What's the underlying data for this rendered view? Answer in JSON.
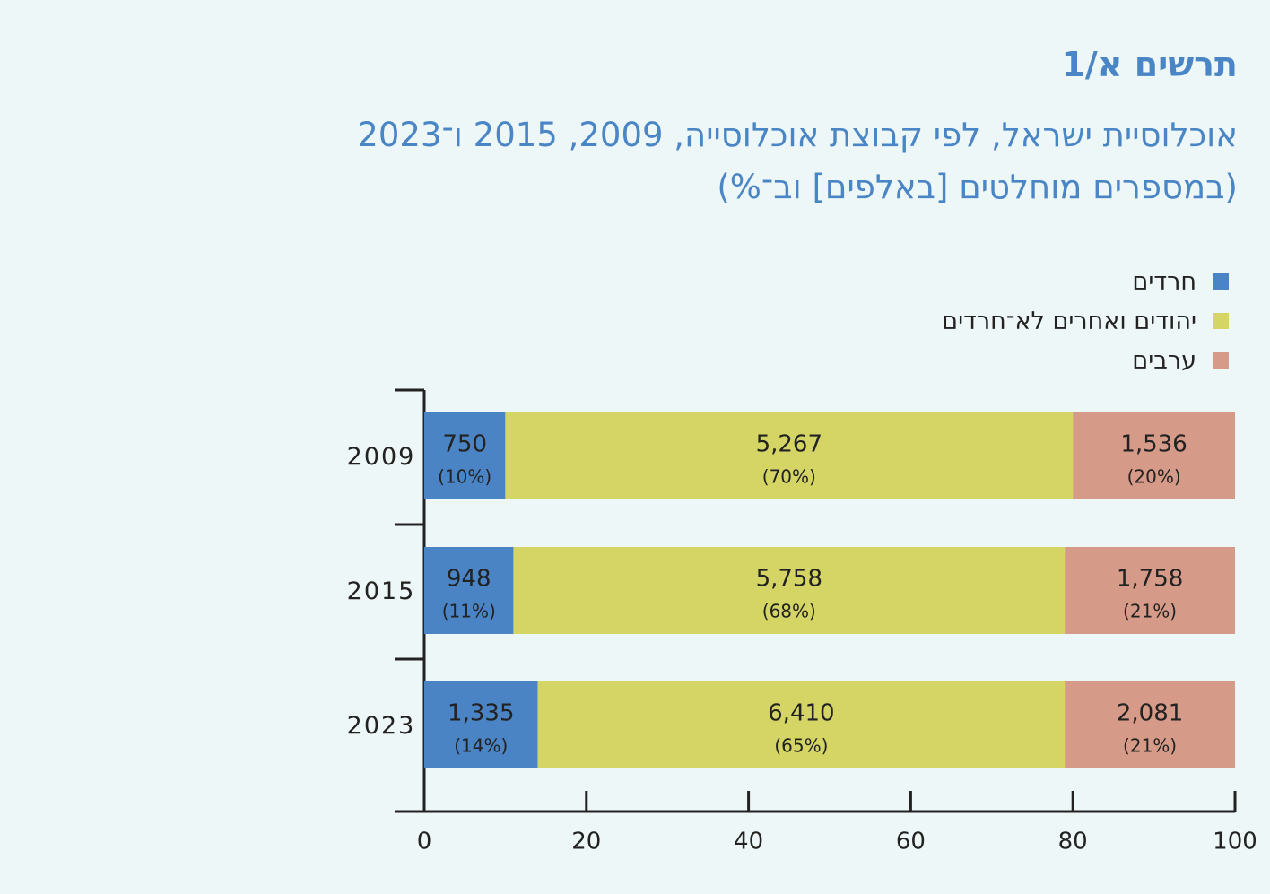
{
  "chart_data": {
    "type": "stacked_barh",
    "title": "תרשים א/1",
    "subtitle": [
      "אוכלוסיית ישראל, לפי קבוצת אוכלוסייה, 2009, 2015 ו־2023",
      "(במספרים מוחלטים [באלפים] וב־%)"
    ],
    "categories": [
      "2009",
      "2015",
      "2023"
    ],
    "series": [
      {
        "name": "חרדים",
        "color": "#4a84c4",
        "values": [
          10,
          11,
          14
        ],
        "value_labels": [
          "(10%)",
          "(11%)",
          "(14%)"
        ],
        "counts": [
          750,
          948,
          {
            "value": 1335,
            "label": "1,335"
          }
        ]
      },
      {
        "name": "יהודים ואחרים לא־חרדים",
        "color": "#d5d565",
        "values": [
          70,
          68,
          65
        ],
        "value_labels": [
          "(70%)",
          "(68%)",
          "(65%)"
        ],
        "counts": [
          {
            "value": 5267,
            "label": "5,267"
          },
          {
            "value": 5758,
            "label": "5,758"
          },
          {
            "value": 6410,
            "label": "6,410"
          }
        ]
      },
      {
        "name": "ערבים",
        "color": "#d69a88",
        "values": [
          20,
          21,
          21
        ],
        "value_labels": [
          "(20%)",
          "(21%)",
          "(21%)"
        ],
        "counts": [
          {
            "value": 1536,
            "label": "1,536"
          },
          {
            "value": 1758,
            "label": "1,758"
          },
          {
            "value": 2081,
            "label": "2,081"
          }
        ]
      }
    ],
    "xlim": [
      0,
      100
    ],
    "xticks": [
      0,
      20,
      40,
      60,
      80,
      100
    ]
  }
}
